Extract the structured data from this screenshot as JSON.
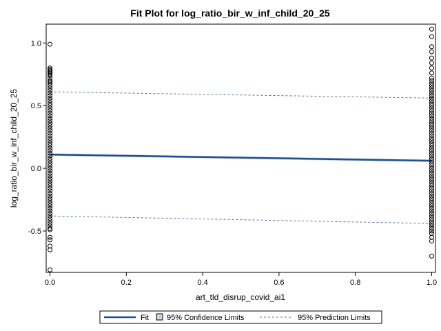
{
  "chart_data": {
    "type": "scatter",
    "title": "Fit Plot for log_ratio_bir_w_inf_child_20_25",
    "xlabel": "art_tld_disrup_covid_ai1",
    "ylabel": "log_ratio_bir_w_inf_child_20_25",
    "xlim": [
      -0.01,
      1.01
    ],
    "ylim": [
      -0.83,
      1.15
    ],
    "x_ticks": [
      "0.0",
      "0.2",
      "0.4",
      "0.6",
      "0.8",
      "1.0"
    ],
    "y_ticks": [
      "-0.5",
      "0.0",
      "0.5",
      "1.0"
    ],
    "grid": false,
    "legend_position": "bottom",
    "points_x0": [
      0.99,
      0.8,
      0.79,
      0.78,
      0.77,
      0.76,
      0.75,
      0.74,
      0.72,
      0.7,
      0.69,
      0.68,
      0.66,
      0.64,
      0.62,
      0.6,
      0.58,
      0.56,
      0.54,
      0.52,
      0.5,
      0.48,
      0.46,
      0.44,
      0.42,
      0.4,
      0.38,
      0.36,
      0.34,
      0.32,
      0.3,
      0.28,
      0.26,
      0.24,
      0.22,
      0.2,
      0.18,
      0.16,
      0.14,
      0.12,
      0.1,
      0.08,
      0.06,
      0.04,
      0.02,
      0.0,
      -0.02,
      -0.04,
      -0.06,
      -0.08,
      -0.1,
      -0.12,
      -0.14,
      -0.16,
      -0.18,
      -0.2,
      -0.22,
      -0.24,
      -0.26,
      -0.28,
      -0.3,
      -0.32,
      -0.34,
      -0.36,
      -0.38,
      -0.4,
      -0.42,
      -0.44,
      -0.46,
      -0.48,
      -0.49,
      -0.55,
      -0.57,
      -0.62,
      -0.65,
      -0.81
    ],
    "points_x1": [
      1.11,
      1.05,
      0.97,
      0.93,
      0.88,
      0.84,
      0.8,
      0.76,
      0.72,
      0.7,
      0.68,
      0.66,
      0.64,
      0.62,
      0.6,
      0.58,
      0.56,
      0.54,
      0.52,
      0.5,
      0.48,
      0.46,
      0.44,
      0.42,
      0.4,
      0.38,
      0.36,
      0.34,
      0.32,
      0.3,
      0.28,
      0.26,
      0.24,
      0.22,
      0.2,
      0.18,
      0.16,
      0.14,
      0.12,
      0.1,
      0.08,
      0.06,
      0.04,
      0.02,
      0.0,
      -0.02,
      -0.04,
      -0.06,
      -0.08,
      -0.1,
      -0.12,
      -0.14,
      -0.16,
      -0.18,
      -0.2,
      -0.22,
      -0.24,
      -0.26,
      -0.28,
      -0.3,
      -0.32,
      -0.34,
      -0.36,
      -0.38,
      -0.4,
      -0.42,
      -0.44,
      -0.46,
      -0.48,
      -0.5,
      -0.52,
      -0.55,
      -0.58,
      -0.7
    ],
    "fit": {
      "x": [
        0,
        1
      ],
      "y": [
        0.11,
        0.06
      ]
    },
    "confidence": {
      "x": [
        0,
        1
      ],
      "lower": [
        0.1,
        0.05
      ],
      "upper": [
        0.12,
        0.07
      ]
    },
    "prediction": {
      "x": [
        0,
        1
      ],
      "lower": [
        -0.38,
        -0.44
      ],
      "upper": [
        0.61,
        0.56
      ]
    },
    "colors": {
      "fit": "#1f4e96",
      "confidence": "#c9d4e8",
      "prediction": "#5a6d99",
      "markers": "#000000"
    },
    "legend": {
      "fit_label": "Fit",
      "confidence_label": "95% Confidence Limits",
      "prediction_label": "95% Prediction Limits"
    }
  }
}
